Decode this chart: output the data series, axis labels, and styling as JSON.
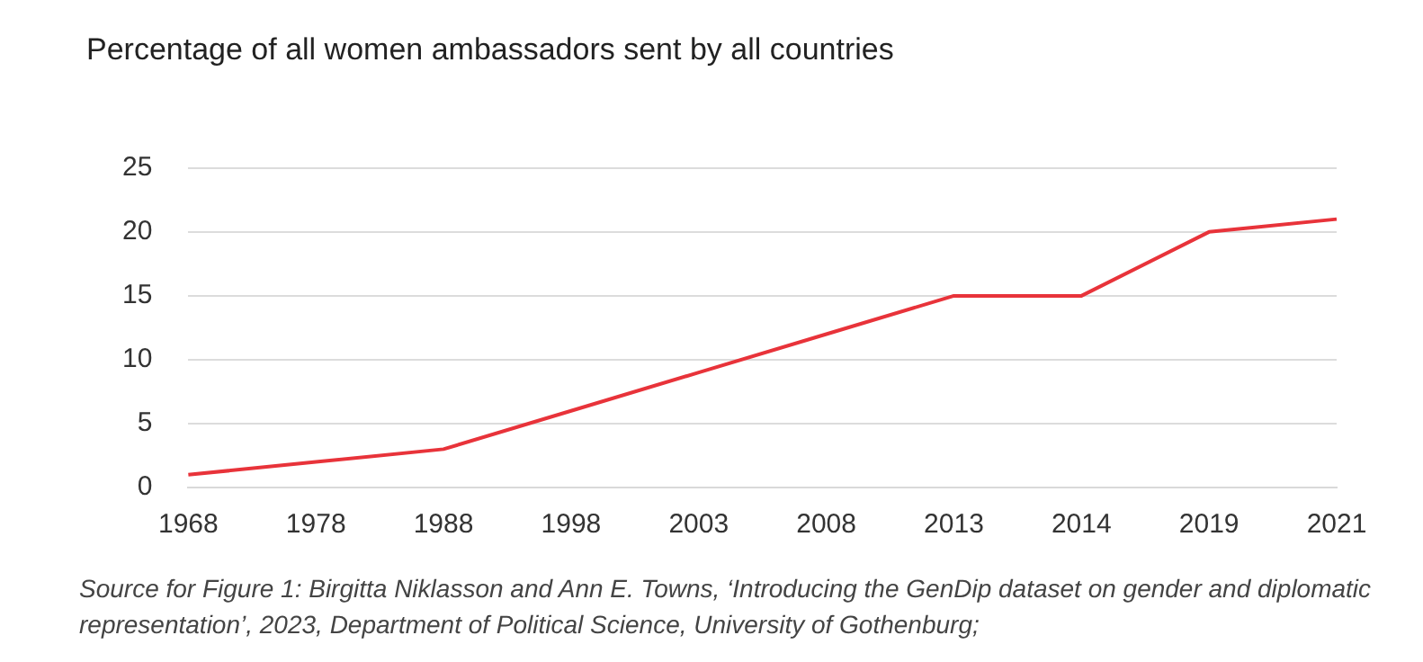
{
  "chart_data": {
    "type": "line",
    "title": "Percentage of all women ambassadors sent by all countries",
    "categories": [
      "1968",
      "1978",
      "1988",
      "1998",
      "2003",
      "2008",
      "2013",
      "2014",
      "2019",
      "2021"
    ],
    "values": [
      1,
      2,
      3,
      6,
      9,
      12,
      15,
      15,
      20,
      21
    ],
    "color": "#e8333a",
    "ylim": [
      0,
      25
    ],
    "yticks": [
      0,
      5,
      10,
      15,
      20,
      25
    ],
    "grid": "y",
    "marker": "none",
    "line_style": "solid",
    "annotations": [
      "Source for Figure 1: Birgitta Niklasson and Ann E. Towns, ‘Introducing the GenDip dataset on gender and diplomatic representation’, 2023, Department of Political Science, University of Gothenburg;"
    ]
  }
}
